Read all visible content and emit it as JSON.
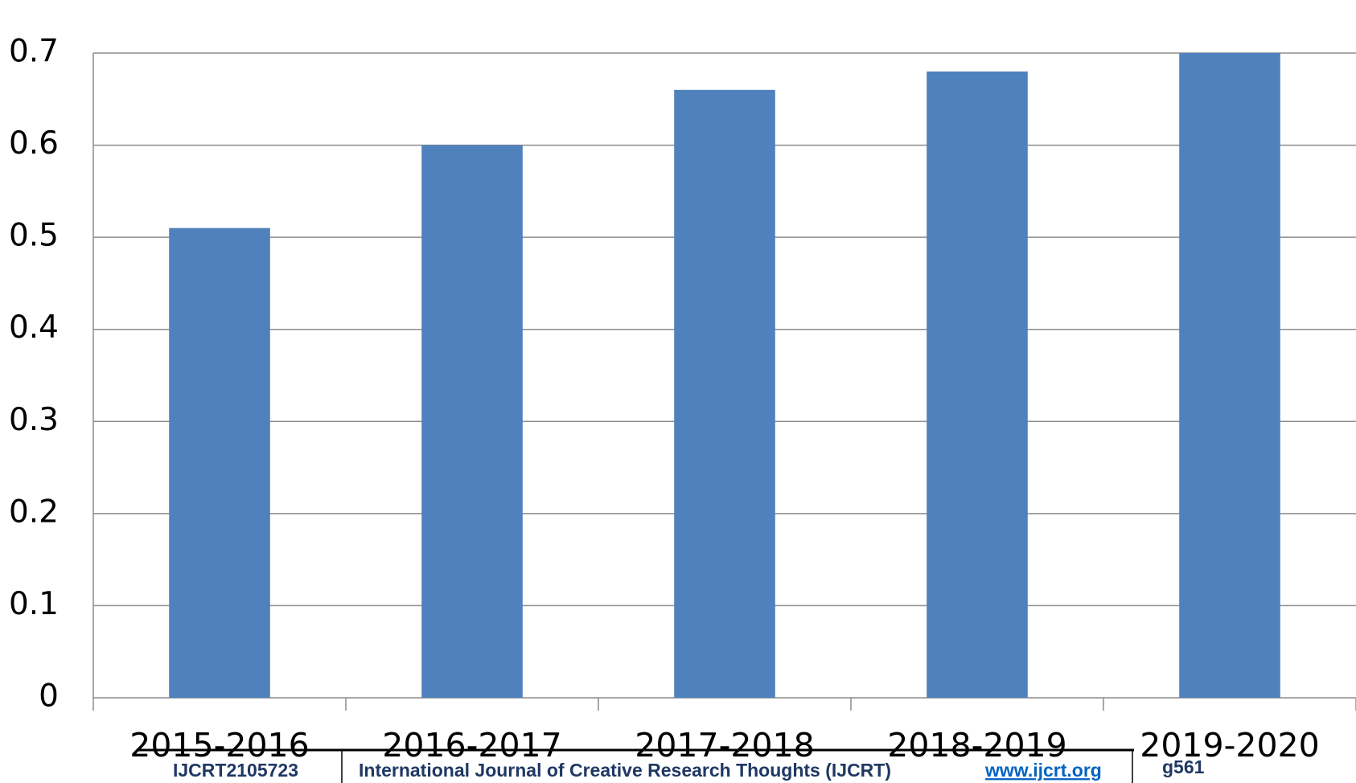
{
  "chart_data": {
    "type": "bar",
    "categories": [
      "2015-2016",
      "2016-2017",
      "2017-2018",
      "2018-2019",
      "2019-2020"
    ],
    "values": [
      0.51,
      0.6,
      0.66,
      0.68,
      0.7
    ],
    "color": "#4f81bd",
    "ylim": [
      0,
      0.7
    ],
    "yticks": [
      0,
      0.1,
      0.2,
      0.3,
      0.4,
      0.5,
      0.6,
      0.7
    ],
    "grid": true
  },
  "footer": {
    "id": "IJCRT2105723",
    "journal": "International Journal of Creative Research Thoughts (IJCRT)",
    "url": "www.ijcrt.org",
    "page": "g561"
  }
}
